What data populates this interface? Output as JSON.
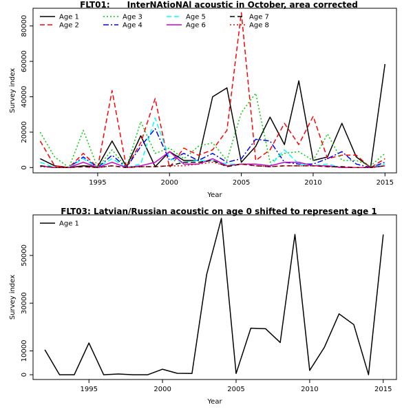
{
  "chart_data": [
    {
      "type": "line",
      "title": "FLT01:      InterNAtioNAl acoustic in October, area corrected",
      "xlabel": "Year",
      "ylabel": "Survey index",
      "xlim": [
        1990.5,
        2015.8
      ],
      "ylim": [
        -3000,
        90000
      ],
      "x_ticks": [
        1995,
        2000,
        2005,
        2010,
        2015
      ],
      "y_ticks": [
        0,
        20000,
        40000,
        60000,
        80000
      ],
      "legend_position": "top-left",
      "grid": false,
      "x": [
        1991,
        1992,
        1993,
        1994,
        1995,
        1996,
        1997,
        1998,
        1999,
        2000,
        2001,
        2002,
        2003,
        2004,
        2005,
        2006,
        2007,
        2008,
        2009,
        2010,
        2011,
        2012,
        2013,
        2014,
        2015
      ],
      "series": [
        {
          "name": "Age 1",
          "color": "#000000",
          "dash": "solid",
          "values": [
            5000,
            1000,
            0,
            1000,
            500,
            15000,
            500,
            18000,
            500,
            9000,
            4000,
            4000,
            40000,
            45000,
            3000,
            12000,
            28500,
            13000,
            49000,
            4000,
            6000,
            25000,
            6000,
            0,
            58500
          ]
        },
        {
          "name": "Age 2",
          "color": "#ff0000",
          "dash": "long",
          "values": [
            15000,
            1000,
            0,
            8000,
            0,
            43500,
            0,
            14000,
            39000,
            0,
            11000,
            7000,
            10000,
            21000,
            87500,
            4000,
            10000,
            25000,
            13000,
            29000,
            5000,
            7000,
            7000,
            0,
            5000
          ]
        },
        {
          "name": "Age 3",
          "color": "#00cc00",
          "dash": "dot",
          "values": [
            20000,
            6000,
            0,
            21000,
            0,
            10000,
            0,
            26000,
            8000,
            11000,
            5000,
            12000,
            14000,
            4000,
            31000,
            42000,
            3000,
            8000,
            9000,
            4000,
            19000,
            4000,
            4000,
            1000,
            8000
          ]
        },
        {
          "name": "Age 4",
          "color": "#0000ff",
          "dash": "dashdot",
          "values": [
            1000,
            0,
            0,
            6000,
            0,
            7000,
            0,
            12000,
            22000,
            4000,
            8000,
            4000,
            8000,
            3000,
            5000,
            16000,
            15000,
            3000,
            2000,
            2000,
            5000,
            9000,
            2000,
            0,
            3000
          ]
        },
        {
          "name": "Age 5",
          "color": "#00ffff",
          "dash": "long",
          "values": [
            3000,
            0,
            0,
            5000,
            0,
            5000,
            0,
            2000,
            28000,
            5000,
            3000,
            4000,
            4000,
            2000,
            2000,
            2000,
            1000,
            10000,
            2000,
            1000,
            2000,
            0,
            0,
            0,
            2000
          ]
        },
        {
          "name": "Age 6",
          "color": "#cc00cc",
          "dash": "solid",
          "values": [
            1000,
            0,
            0,
            3000,
            0,
            3000,
            0,
            1000,
            3000,
            9000,
            2000,
            2000,
            5000,
            1000,
            2000,
            2000,
            1000,
            3000,
            3000,
            1000,
            1000,
            0,
            0,
            0,
            1000
          ]
        },
        {
          "name": "Age 7",
          "color": "#000000",
          "dash": "long",
          "values": [
            1000,
            0,
            0,
            500,
            0,
            1000,
            0,
            500,
            500,
            1000,
            3000,
            3000,
            4000,
            500,
            2000,
            1000,
            500,
            1000,
            1000,
            1000,
            500,
            500,
            0,
            0,
            1000
          ]
        },
        {
          "name": "Age 8",
          "color": "#ff0000",
          "dash": "dot",
          "values": [
            500,
            0,
            0,
            500,
            0,
            1000,
            0,
            500,
            500,
            1000,
            1000,
            2000,
            3000,
            1000,
            2000,
            1000,
            500,
            1000,
            1000,
            1000,
            500,
            0,
            0,
            0,
            1000
          ]
        }
      ]
    },
    {
      "type": "line",
      "title": "FLT03: Latvian/Russian acoustic on age 0 shifted to represent age 1",
      "xlabel": "Year",
      "ylabel": "Survey index",
      "xlim": [
        1991.2,
        2015.9
      ],
      "ylim": [
        -2000,
        67000
      ],
      "x_ticks": [
        1995,
        2000,
        2005,
        2010,
        2015
      ],
      "y_ticks": [
        0,
        10000,
        30000,
        50000
      ],
      "legend_position": "top-left",
      "grid": false,
      "x": [
        1992,
        1993,
        1994,
        1995,
        1996,
        1997,
        1998,
        1999,
        2000,
        2001,
        2002,
        2003,
        2004,
        2005,
        2006,
        2007,
        2008,
        2009,
        2010,
        2011,
        2012,
        2013,
        2014,
        2015
      ],
      "series": [
        {
          "name": "Age 1",
          "color": "#000000",
          "dash": "solid",
          "values": [
            10500,
            0,
            0,
            13300,
            0,
            300,
            0,
            0,
            2300,
            600,
            500,
            42000,
            65500,
            500,
            19500,
            19300,
            13500,
            58800,
            1800,
            11500,
            25500,
            21000,
            0,
            58800
          ]
        }
      ]
    }
  ]
}
